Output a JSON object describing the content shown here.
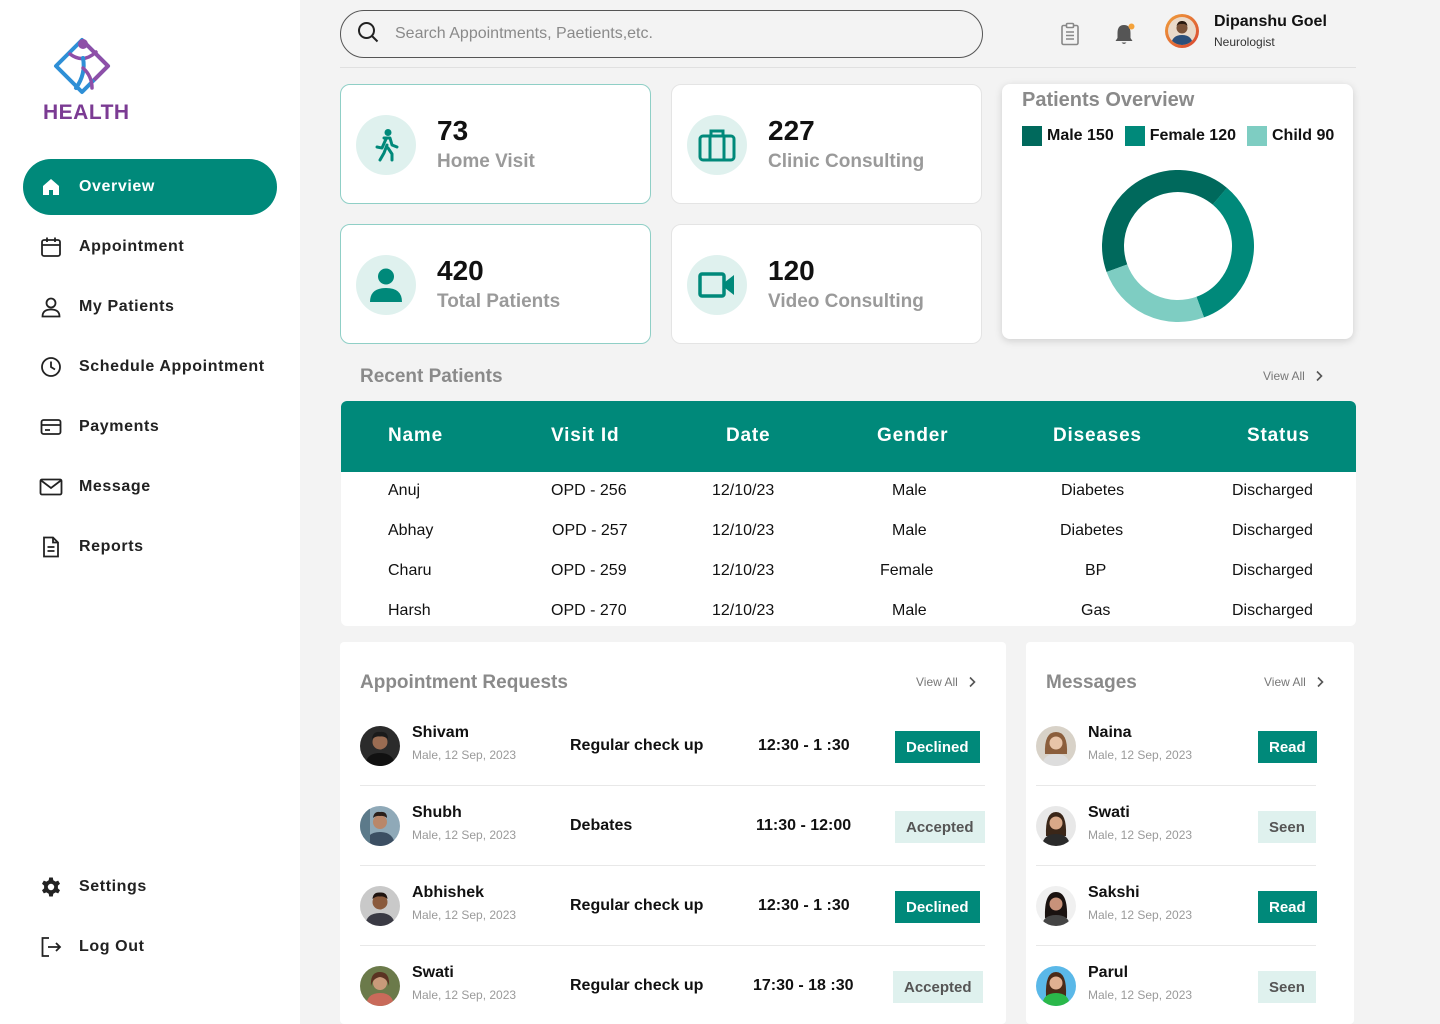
{
  "brand": {
    "name": "HEALTH"
  },
  "sidebar": {
    "items": [
      {
        "label": "Overview",
        "icon": "home-icon",
        "active": true
      },
      {
        "label": "Appointment",
        "icon": "calendar-icon",
        "active": false
      },
      {
        "label": "My Patients",
        "icon": "user-icon",
        "active": false
      },
      {
        "label": "Schedule Appointment",
        "icon": "clock-icon",
        "active": false
      },
      {
        "label": "Payments",
        "icon": "card-icon",
        "active": false
      },
      {
        "label": "Message",
        "icon": "mail-icon",
        "active": false
      },
      {
        "label": "Reports",
        "icon": "document-icon",
        "active": false
      }
    ],
    "bottom": [
      {
        "label": "Settings",
        "icon": "gear-icon"
      },
      {
        "label": "Log Out",
        "icon": "logout-icon"
      }
    ]
  },
  "header": {
    "search_placeholder": "Search Appointments, Paetients,etc.",
    "user_name": "Dipanshu Goel",
    "user_role": "Neurologist"
  },
  "stats": [
    {
      "value": "73",
      "label": "Home Visit",
      "icon": "walking-icon"
    },
    {
      "value": "227",
      "label": "Clinic Consulting",
      "icon": "briefcase-icon"
    },
    {
      "value": "420",
      "label": "Total Patients",
      "icon": "person-icon"
    },
    {
      "value": "120",
      "label": "Video Consulting",
      "icon": "video-icon"
    }
  ],
  "overview": {
    "title": "Patients Overview",
    "legend": [
      {
        "label": "Male 150",
        "color": "#00695c"
      },
      {
        "label": "Female 120",
        "color": "#00897a"
      },
      {
        "label": "Child 90",
        "color": "#7ecdc2"
      }
    ]
  },
  "chart_data": {
    "type": "pie",
    "categories": [
      "Male",
      "Female",
      "Child"
    ],
    "values": [
      150,
      120,
      90
    ],
    "colors": [
      "#00695c",
      "#00897a",
      "#7ecdc2"
    ]
  },
  "recent": {
    "title": "Recent Patients",
    "view_all": "View All",
    "columns": [
      "Name",
      "Visit Id",
      "Date",
      "Gender",
      "Diseases",
      "Status"
    ],
    "rows": [
      [
        "Anuj",
        "OPD - 256",
        "12/10/23",
        "Male",
        "Diabetes",
        "Discharged"
      ],
      [
        "Abhay",
        "OPD - 257",
        "12/10/23",
        "Male",
        "Diabetes",
        "Discharged"
      ],
      [
        "Charu",
        "OPD - 259",
        "12/10/23",
        "Female",
        "BP",
        "Discharged"
      ],
      [
        "Harsh",
        "OPD - 270",
        "12/10/23",
        "Male",
        "Gas",
        "Discharged"
      ]
    ]
  },
  "requests": {
    "title": "Appointment Requests",
    "view_all": "View All",
    "rows": [
      {
        "name": "Shivam",
        "sub": "Male, 12 Sep, 2023",
        "type": "Regular check up",
        "time": "12:30 - 1 :30",
        "status": "Declined"
      },
      {
        "name": "Shubh",
        "sub": "Male, 12 Sep, 2023",
        "type": "Debates",
        "time": "11:30 - 12:00",
        "status": "Accepted"
      },
      {
        "name": "Abhishek",
        "sub": "Male, 12 Sep, 2023",
        "type": "Regular check up",
        "time": "12:30 - 1 :30",
        "status": "Declined"
      },
      {
        "name": "Swati",
        "sub": "Male, 12 Sep, 2023",
        "type": "Regular check up",
        "time": "17:30 - 18 :30",
        "status": "Accepted"
      }
    ]
  },
  "messages": {
    "title": "Messages",
    "view_all": "View All",
    "rows": [
      {
        "name": "Naina",
        "sub": "Male, 12 Sep, 2023",
        "status": "Read"
      },
      {
        "name": "Swati",
        "sub": "Male, 12 Sep, 2023",
        "status": "Seen"
      },
      {
        "name": "Sakshi",
        "sub": "Male, 12 Sep, 2023",
        "status": "Read"
      },
      {
        "name": "Parul",
        "sub": "Male, 12 Sep, 2023",
        "status": "Seen"
      }
    ]
  }
}
